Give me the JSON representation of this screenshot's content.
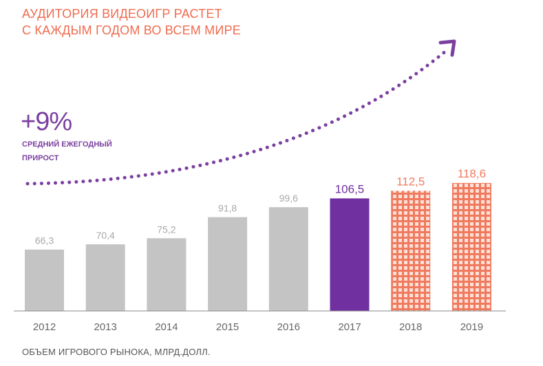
{
  "title": {
    "line1": "АУДИТОРИЯ ВИДЕОИГР РАСТЕТ",
    "line2": "С КАЖДЫМ ГОДОМ ВО ВСЕМ МИРЕ"
  },
  "growth": {
    "value": "+9%",
    "label": "СРЕДНИЙ ЕЖЕГОДНЫЙ ПРИРОСТ"
  },
  "footnote": "ОБЪЕМ ИГРОВОГО РЫНОКА, МЛРД.ДОЛЛ.",
  "colors": {
    "actual": "#c4c4c4",
    "highlight": "#7030a0",
    "forecast": "#f07a5e",
    "title": "#f06b4f",
    "arrow": "#7b3fa0"
  },
  "chart_data": {
    "type": "bar",
    "categories": [
      "2012",
      "2013",
      "2014",
      "2015",
      "2016",
      "2017",
      "2018",
      "2019"
    ],
    "values": [
      66.3,
      70.4,
      75.2,
      91.8,
      99.6,
      106.5,
      112.5,
      118.6
    ],
    "value_labels": [
      "66,3",
      "70,4",
      "75,2",
      "91,8",
      "99,6",
      "106,5",
      "112,5",
      "118,6"
    ],
    "bar_styles": [
      "actual",
      "actual",
      "actual",
      "actual",
      "actual",
      "highlight",
      "forecast",
      "forecast"
    ],
    "ylim": [
      0,
      140
    ],
    "grid": false,
    "xlabel": "",
    "ylabel": ""
  }
}
